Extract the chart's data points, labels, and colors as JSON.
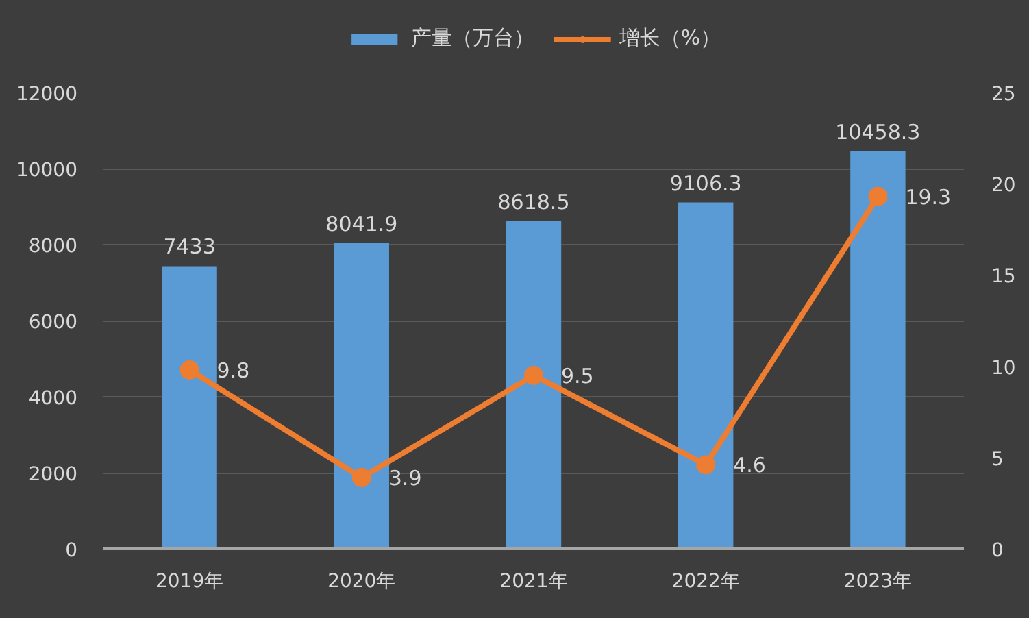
{
  "chart_data": {
    "type": "bar",
    "categories": [
      "2019年",
      "2020年",
      "2021年",
      "2022年",
      "2023年"
    ],
    "series": [
      {
        "name": "产量（万台）",
        "color": "#5b9bd5",
        "values": [
          7433,
          8041.9,
          8618.5,
          9106.3,
          10458.3
        ]
      },
      {
        "name": "增长（%）",
        "type": "line",
        "axis": "y2",
        "color": "#ed7d31",
        "values": [
          9.8,
          3.9,
          9.5,
          4.6,
          19.3
        ]
      }
    ],
    "ylim": [
      0,
      12000
    ],
    "yticks": [
      0,
      2000,
      4000,
      6000,
      8000,
      10000,
      12000
    ],
    "y2lim": [
      0,
      25
    ],
    "y2ticks": [
      0,
      5,
      10,
      15,
      20,
      25
    ],
    "data_labels": true,
    "grid": "y",
    "legend": "top",
    "marker": "circle"
  }
}
